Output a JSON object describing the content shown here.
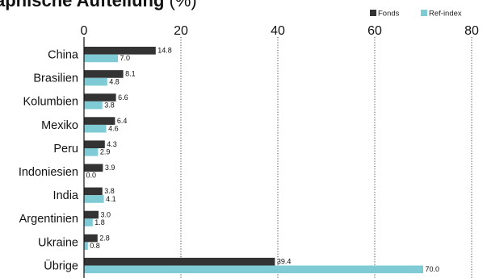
{
  "chart_data": {
    "type": "bar",
    "orientation": "horizontal",
    "title": "aphische Aufteilung",
    "title_unit": "(%)",
    "xlabel": "",
    "ylabel": "",
    "xlim": [
      0,
      85
    ],
    "x_ticks": [
      0,
      20,
      40,
      60,
      80
    ],
    "x_tick_labels": [
      "0",
      "20",
      "40",
      "60",
      "80"
    ],
    "grid": "vertical dotted",
    "legend_position": "top-right",
    "categories": [
      "China",
      "Brasilien",
      "Kolumbien",
      "Mexiko",
      "Peru",
      "Indoniesien",
      "India",
      "Argentinien",
      "Ukraine",
      "Übrige"
    ],
    "series": [
      {
        "name": "Fonds",
        "color": "#333333",
        "values": [
          14.8,
          8.1,
          6.6,
          6.4,
          4.3,
          3.9,
          3.8,
          3.0,
          2.8,
          39.4
        ],
        "labels": [
          "14.8",
          "8.1",
          "6.6",
          "6.4",
          "4.3",
          "3.9",
          "3.8",
          "3.0",
          "2.8",
          "39.4"
        ]
      },
      {
        "name": "Ref-index",
        "color": "#7ecbd6",
        "values": [
          7.0,
          4.8,
          3.8,
          4.6,
          2.9,
          0.0,
          4.1,
          1.8,
          0.8,
          70.0
        ],
        "labels": [
          "7.0",
          "4.8",
          "3.8",
          "4.6",
          "2.9",
          "0.0",
          "4.1",
          "1.8",
          "0.8",
          "70.0"
        ]
      }
    ]
  }
}
